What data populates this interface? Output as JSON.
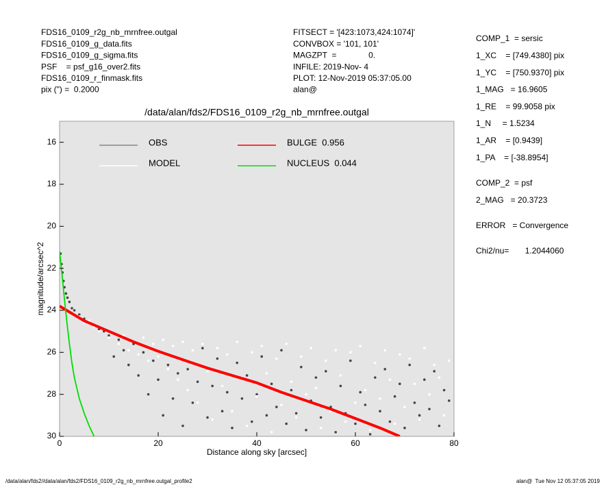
{
  "header": {
    "left": [
      "FDS16_0109_r2g_nb_mrnfree.outgal",
      "FDS16_0109_g_data.fits",
      "FDS16_0109_g_sigma.fits",
      "PSF    = psf_g16_over2.fits",
      "FDS16_0109_r_finmask.fits",
      "pix (\") =  0.2000"
    ],
    "center": [
      "FITSECT = '[423:1073,424:1074]'",
      "CONVBOX = '101, 101'",
      "MAGZPT  =              0.",
      "INFILE: 2019-Nov- 4",
      "PLOT: 12-Nov-2019 05:37:05.00",
      "alan@"
    ],
    "right": [
      [
        "COMP_1  = sersic",
        "1_XC    = [749.4380] pix",
        "1_YC    = [750.9370] pix",
        "1_MAG   = 16.9605",
        "1_RE    = 99.9058 pix",
        "1_N     = 1.5234",
        "1_AR    = [0.9439]",
        "1_PA    = [-38.8954]"
      ],
      [
        "COMP_2  = psf",
        "2_MAG   = 20.3723"
      ],
      [
        "ERROR   = Convergence"
      ],
      [
        "Chi2/nu=       1.2044060"
      ]
    ]
  },
  "footer": {
    "left": "/data/alan/fds2//data/alan/fds2/FDS16_0109_r2g_nb_mrnfree.outgal_profile2",
    "right": "alan@  Tue Nov 12 05:37:05 2019"
  },
  "chart_data": {
    "type": "scatter",
    "title": "/data/alan/fds2/FDS16_0109_r2g_nb_mrnfree.outgal",
    "x_label": "Distance along sky [arcsec]",
    "y_label": "magnitude/arcsec^2",
    "xlim": [
      0,
      80
    ],
    "xticks": [
      0,
      20,
      40,
      60,
      80
    ],
    "ylim": [
      15,
      30
    ],
    "yticks": [
      16,
      18,
      20,
      22,
      24,
      26,
      28,
      30
    ],
    "y_inverted": true,
    "background": "#e5e5e5",
    "series": [
      {
        "name": "OBS",
        "style": "points",
        "color": "#444444",
        "legend_color": "#888888",
        "x": [
          0.2,
          0.4,
          0.6,
          0.8,
          1.0,
          1.3,
          1.6,
          2.0,
          2.5,
          3,
          4,
          5,
          6,
          7,
          8,
          9,
          10,
          11,
          12,
          13,
          14,
          15,
          16,
          17,
          18,
          19,
          20,
          21,
          22,
          23,
          24,
          25,
          26,
          27,
          28,
          29,
          30,
          31,
          32,
          33,
          34,
          35,
          36,
          37,
          38,
          39,
          40,
          41,
          42,
          43,
          44,
          45,
          46,
          47,
          48,
          49,
          50,
          51,
          52,
          53,
          54,
          55,
          56,
          57,
          58,
          59,
          60,
          61,
          62,
          63,
          64,
          65,
          66,
          67,
          68,
          69,
          70,
          71,
          72,
          73,
          74,
          75,
          76,
          77,
          78,
          79
        ],
        "values": [
          21.3,
          21.8,
          22.2,
          22.6,
          22.9,
          23.2,
          23.4,
          23.6,
          23.9,
          24.0,
          24.2,
          24.4,
          24.6,
          24.7,
          24.9,
          25.0,
          25.2,
          26.2,
          25.4,
          25.9,
          26.6,
          25.6,
          27.1,
          26.0,
          28.0,
          26.4,
          27.3,
          29.0,
          26.6,
          28.2,
          27.0,
          29.5,
          26.8,
          28.4,
          27.4,
          25.8,
          29.1,
          27.6,
          26.3,
          28.8,
          27.9,
          29.6,
          26.5,
          28.2,
          27.1,
          29.3,
          28.0,
          26.2,
          29.0,
          27.5,
          28.6,
          25.9,
          29.4,
          27.8,
          28.9,
          26.7,
          29.7,
          28.3,
          27.2,
          29.1,
          26.9,
          28.6,
          29.8,
          27.6,
          28.9,
          26.4,
          29.4,
          27.9,
          28.5,
          29.9,
          27.2,
          28.8,
          26.8,
          29.3,
          28.1,
          27.5,
          29.6,
          26.6,
          28.4,
          29.0,
          27.3,
          28.7,
          26.9,
          29.5,
          27.8,
          28.3
        ]
      },
      {
        "name": "MODEL",
        "style": "points",
        "color": "#ffffff",
        "legend_color": "#ffffff",
        "x": [
          3,
          4,
          5,
          6,
          7,
          8,
          9,
          10,
          11,
          12,
          13,
          14,
          15,
          16,
          17,
          18,
          19,
          20,
          21,
          22,
          23,
          24,
          25,
          26,
          27,
          28,
          29,
          30,
          31,
          32,
          33,
          34,
          35,
          36,
          37,
          38,
          39,
          40,
          41,
          42,
          43,
          44,
          45,
          46,
          47,
          48,
          49,
          50,
          51,
          52,
          53,
          54,
          55,
          56,
          57,
          58,
          59,
          60,
          61,
          62,
          63,
          64,
          65,
          66,
          67,
          68,
          69,
          70,
          71,
          72,
          73,
          74,
          75,
          76,
          77,
          78,
          79
        ],
        "values": [
          24.2,
          24.3,
          24.6,
          24.5,
          24.8,
          25.0,
          24.9,
          25.3,
          25.1,
          25.6,
          25.2,
          25.9,
          25.5,
          26.1,
          25.3,
          26.4,
          25.6,
          26.2,
          25.4,
          26.8,
          25.7,
          27.3,
          25.5,
          27.8,
          25.9,
          28.4,
          25.6,
          26.9,
          29.2,
          25.8,
          27.6,
          26.1,
          28.8,
          25.5,
          27.2,
          29.5,
          26.0,
          28.1,
          25.7,
          27.0,
          29.8,
          26.3,
          28.5,
          25.6,
          27.4,
          29.1,
          26.2,
          28.0,
          25.8,
          27.7,
          29.6,
          26.4,
          28.8,
          25.9,
          27.1,
          29.3,
          26.0,
          28.4,
          25.7,
          27.8,
          29.7,
          26.5,
          28.2,
          25.9,
          27.3,
          29.4,
          26.1,
          28.6,
          26.3,
          27.5,
          29.2,
          25.8,
          28.0,
          26.6,
          27.2,
          29.0,
          26.4
        ]
      },
      {
        "name": "BULGE  0.956",
        "style": "line",
        "color": "#ff0000",
        "legend_color": "#ff0000",
        "x": [
          0,
          5,
          10,
          15,
          20,
          25,
          30,
          35,
          40,
          45,
          50,
          55,
          60,
          65,
          69
        ],
        "values": [
          23.8,
          24.5,
          25.0,
          25.5,
          25.95,
          26.35,
          26.75,
          27.1,
          27.45,
          27.9,
          28.3,
          28.7,
          29.15,
          29.6,
          30.0
        ]
      },
      {
        "name": "NUCLEUS  0.044",
        "style": "line",
        "color": "#00dd00",
        "legend_color": "#00dd00",
        "x": [
          0,
          0.5,
          1,
          1.5,
          2,
          2.5,
          3,
          4,
          5,
          6,
          7
        ],
        "values": [
          21.2,
          22.3,
          23.5,
          24.6,
          25.6,
          26.5,
          27.2,
          28.2,
          28.9,
          29.5,
          30.0
        ]
      }
    ]
  }
}
